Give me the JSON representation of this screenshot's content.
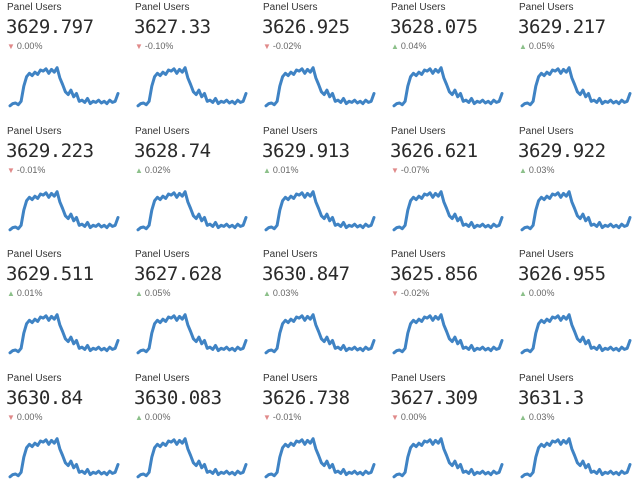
{
  "colors": {
    "line": "#3f83c4",
    "up": "#8cc08a",
    "down": "#e08a8a"
  },
  "panels": [
    {
      "title": "Panel Users",
      "value": "3629.797",
      "dir": "down",
      "delta": "0.00%"
    },
    {
      "title": "Panel Users",
      "value": "3627.33",
      "dir": "down",
      "delta": "-0.10%"
    },
    {
      "title": "Panel Users",
      "value": "3626.925",
      "dir": "down",
      "delta": "-0.02%"
    },
    {
      "title": "Panel Users",
      "value": "3628.075",
      "dir": "up",
      "delta": "0.04%"
    },
    {
      "title": "Panel Users",
      "value": "3629.217",
      "dir": "up",
      "delta": "0.05%"
    },
    {
      "title": "Panel Users",
      "value": "3629.223",
      "dir": "down",
      "delta": "-0.01%"
    },
    {
      "title": "Panel Users",
      "value": "3628.74",
      "dir": "up",
      "delta": "0.02%"
    },
    {
      "title": "Panel Users",
      "value": "3629.913",
      "dir": "up",
      "delta": "0.01%"
    },
    {
      "title": "Panel Users",
      "value": "3626.621",
      "dir": "down",
      "delta": "-0.07%"
    },
    {
      "title": "Panel Users",
      "value": "3629.922",
      "dir": "up",
      "delta": "0.03%"
    },
    {
      "title": "Panel Users",
      "value": "3629.511",
      "dir": "up",
      "delta": "0.01%"
    },
    {
      "title": "Panel Users",
      "value": "3627.628",
      "dir": "up",
      "delta": "0.05%"
    },
    {
      "title": "Panel Users",
      "value": "3630.847",
      "dir": "up",
      "delta": "0.03%"
    },
    {
      "title": "Panel Users",
      "value": "3625.856",
      "dir": "down",
      "delta": "-0.02%"
    },
    {
      "title": "Panel Users",
      "value": "3626.955",
      "dir": "up",
      "delta": "0.00%"
    },
    {
      "title": "Panel Users",
      "value": "3630.84",
      "dir": "down",
      "delta": "0.00%"
    },
    {
      "title": "Panel Users",
      "value": "3630.083",
      "dir": "up",
      "delta": "0.00%"
    },
    {
      "title": "Panel Users",
      "value": "3626.738",
      "dir": "down",
      "delta": "-0.01%"
    },
    {
      "title": "Panel Users",
      "value": "3627.309",
      "dir": "down",
      "delta": "0.00%"
    },
    {
      "title": "Panel Users",
      "value": "3631.3",
      "dir": "up",
      "delta": "0.03%"
    }
  ],
  "chart_data": {
    "type": "line",
    "x": [
      0,
      1,
      2,
      3,
      4,
      5,
      6,
      7,
      8,
      9,
      10,
      11,
      12,
      13,
      14,
      15,
      16,
      17,
      18,
      19,
      20,
      21,
      22,
      23,
      24,
      25,
      26,
      27,
      28,
      29,
      30,
      31,
      32,
      33,
      34,
      35,
      36,
      37,
      38,
      39
    ],
    "series": [
      {
        "values": [
          20,
          24,
          25,
          22,
          28,
          55,
          72,
          78,
          74,
          80,
          76,
          84,
          82,
          86,
          78,
          85,
          80,
          88,
          70,
          58,
          45,
          40,
          48,
          36,
          42,
          28,
          30,
          26,
          33,
          24,
          28,
          26,
          30,
          25,
          28,
          24,
          30,
          26,
          28,
          42
        ]
      }
    ],
    "ylim": [
      0,
      100
    ]
  }
}
